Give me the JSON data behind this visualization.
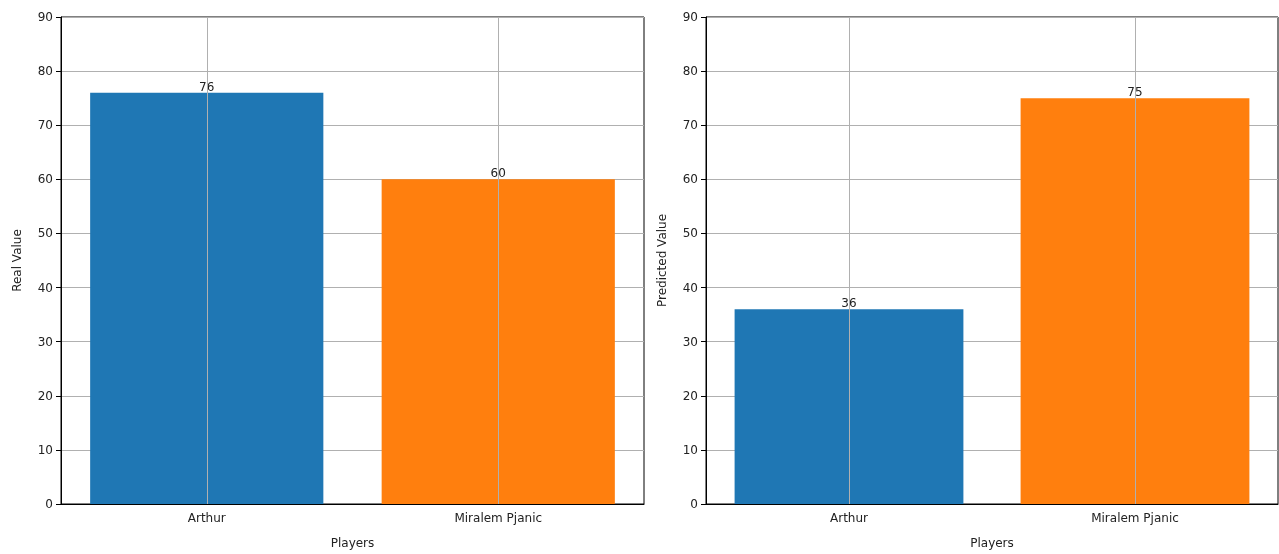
{
  "chart_data": [
    {
      "type": "bar",
      "xlabel": "Players",
      "ylabel": "Real Value",
      "categories": [
        "Arthur",
        "Miralem Pjanic"
      ],
      "values": [
        76,
        60
      ],
      "colors": [
        "#1f77b4",
        "#ff7f0e"
      ],
      "ylim": [
        0,
        90
      ],
      "yticks": [
        0,
        10,
        20,
        30,
        40,
        50,
        60,
        70,
        80,
        90
      ],
      "grid": true,
      "data_labels": true
    },
    {
      "type": "bar",
      "xlabel": "Players",
      "ylabel": "Predicted Value",
      "categories": [
        "Arthur",
        "Miralem Pjanic"
      ],
      "values": [
        36,
        75
      ],
      "colors": [
        "#1f77b4",
        "#ff7f0e"
      ],
      "ylim": [
        0,
        90
      ],
      "yticks": [
        0,
        10,
        20,
        30,
        40,
        50,
        60,
        70,
        80,
        90
      ],
      "grid": true,
      "data_labels": true
    }
  ]
}
